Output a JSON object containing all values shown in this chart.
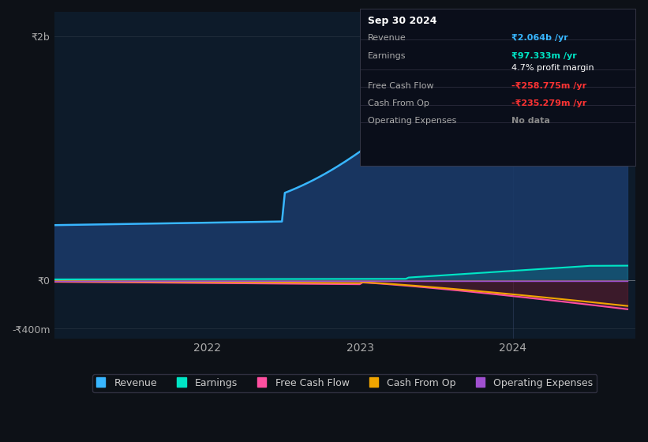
{
  "bg_color": "#0d1117",
  "plot_bg_color": "#0d1b2a",
  "y_values": [
    2000000000,
    0,
    -400000000
  ],
  "x_ticks": [
    2022,
    2023,
    2024
  ],
  "revenue_color": "#38b6ff",
  "earnings_color": "#00e5c5",
  "fcf_color": "#ff4fa0",
  "cashop_color": "#f0a500",
  "opex_color": "#a050d0",
  "revenue_fill_color": "#1a3a6a",
  "negative_fill_color": "#6a1a2a",
  "info_box": {
    "title": "Sep 30 2024",
    "revenue_label": "Revenue",
    "revenue_value": "₹2.064b /yr",
    "earnings_label": "Earnings",
    "earnings_value": "₹97.333m /yr",
    "earnings_margin": "4.7% profit margin",
    "fcf_label": "Free Cash Flow",
    "fcf_value": "-₹258.775m /yr",
    "cashop_label": "Cash From Op",
    "cashop_value": "-₹235.279m /yr",
    "opex_label": "Operating Expenses",
    "opex_value": "No data"
  },
  "legend": [
    {
      "label": "Revenue",
      "color": "#38b6ff"
    },
    {
      "label": "Earnings",
      "color": "#00e5c5"
    },
    {
      "label": "Free Cash Flow",
      "color": "#ff4fa0"
    },
    {
      "label": "Cash From Op",
      "color": "#f0a500"
    },
    {
      "label": "Operating Expenses",
      "color": "#a050d0"
    }
  ]
}
